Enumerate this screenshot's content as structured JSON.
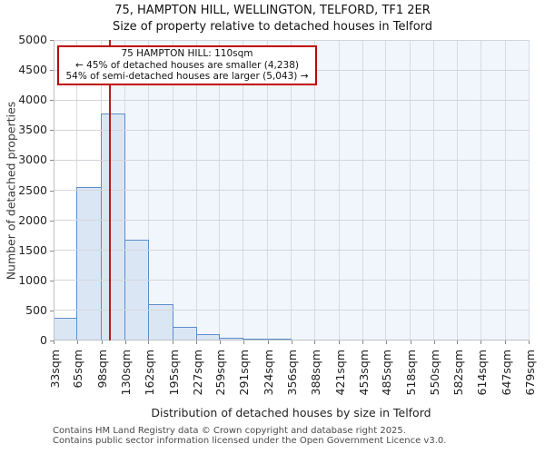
{
  "title": "75, HAMPTON HILL, WELLINGTON, TELFORD, TF1 2ER",
  "subtitle": "Size of property relative to detached houses in Telford",
  "annotation": {
    "line1": "75 HAMPTON HILL: 110sqm",
    "line2": "← 45% of detached houses are smaller (4,238)",
    "line3": "54% of semi-detached houses are larger (5,043) →"
  },
  "footer": {
    "line1": "Contains HM Land Registry data © Crown copyright and database right 2025.",
    "line2": "Contains public sector information licensed under the Open Government Licence v3.0."
  },
  "chart_data": {
    "type": "bar",
    "subtype": "histogram",
    "title": "75, HAMPTON HILL, WELLINGTON, TELFORD, TF1 2ER — Size of property relative to detached houses in Telford",
    "xlabel": "Distribution of detached houses by size in Telford",
    "ylabel": "Number of detached properties",
    "x_tick_values": [
      33,
      65,
      98,
      130,
      162,
      195,
      227,
      259,
      291,
      324,
      356,
      388,
      421,
      453,
      485,
      518,
      550,
      582,
      614,
      647,
      679
    ],
    "x_tick_suffix": "sqm",
    "xlim": [
      33,
      679
    ],
    "ylim": [
      0,
      5000
    ],
    "ytick_step": 500,
    "grid": true,
    "bin_edges": [
      33,
      65,
      98,
      130,
      162,
      195,
      227,
      259,
      291,
      324,
      356,
      388,
      421,
      453,
      485,
      518,
      550,
      582,
      614,
      647,
      679
    ],
    "counts": [
      380,
      2560,
      3770,
      1670,
      610,
      230,
      100,
      40,
      15,
      10,
      0,
      0,
      0,
      0,
      0,
      0,
      0,
      0,
      0,
      0
    ],
    "marker_value": 110,
    "marker_label": "110sqm",
    "colors": {
      "bar_fill": "#dbe6f5",
      "bar_border": "#5c8dcb",
      "marker_line": "#b01e23",
      "annotation_border": "#c00000",
      "shade_right_of_marker": "#f1f6fd",
      "gridline": "#d4d5db"
    }
  }
}
